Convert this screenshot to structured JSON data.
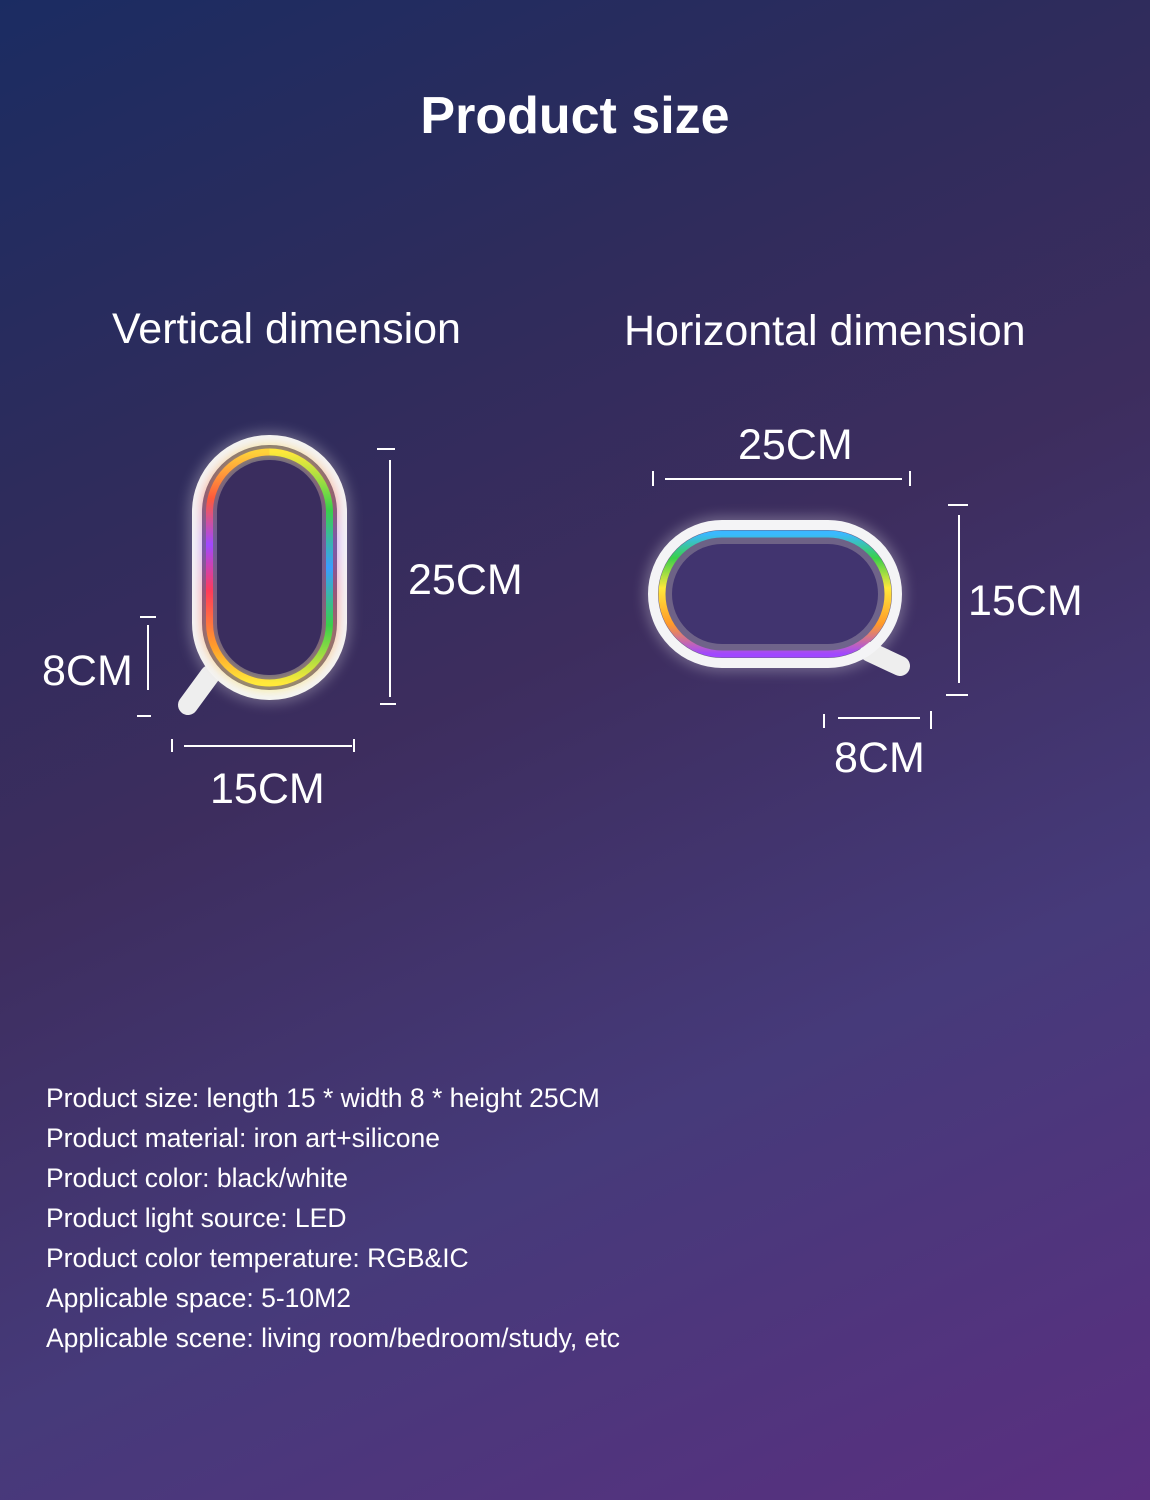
{
  "title": "Product size",
  "vertical": {
    "heading": "Vertical dimension",
    "height": "25CM",
    "width": "15CM",
    "depth": "8CM"
  },
  "horizontal": {
    "heading": "Horizontal dimension",
    "width": "25CM",
    "height": "15CM",
    "depth": "8CM"
  },
  "specs": [
    "Product size: length 15 * width 8 * height 25CM",
    "Product material: iron art+silicone",
    "Product color: black/white",
    "Product light source: LED",
    "Product color temperature: RGB&IC",
    "Applicable space: 5-10M2",
    "Applicable scene: living room/bedroom/study, etc"
  ],
  "colors": {
    "frame": "#f4f4f6",
    "rgb": [
      "#ff3a3a",
      "#ff9a2a",
      "#ffe93a",
      "#3ad04a",
      "#3ab8ff",
      "#a048ff"
    ]
  }
}
